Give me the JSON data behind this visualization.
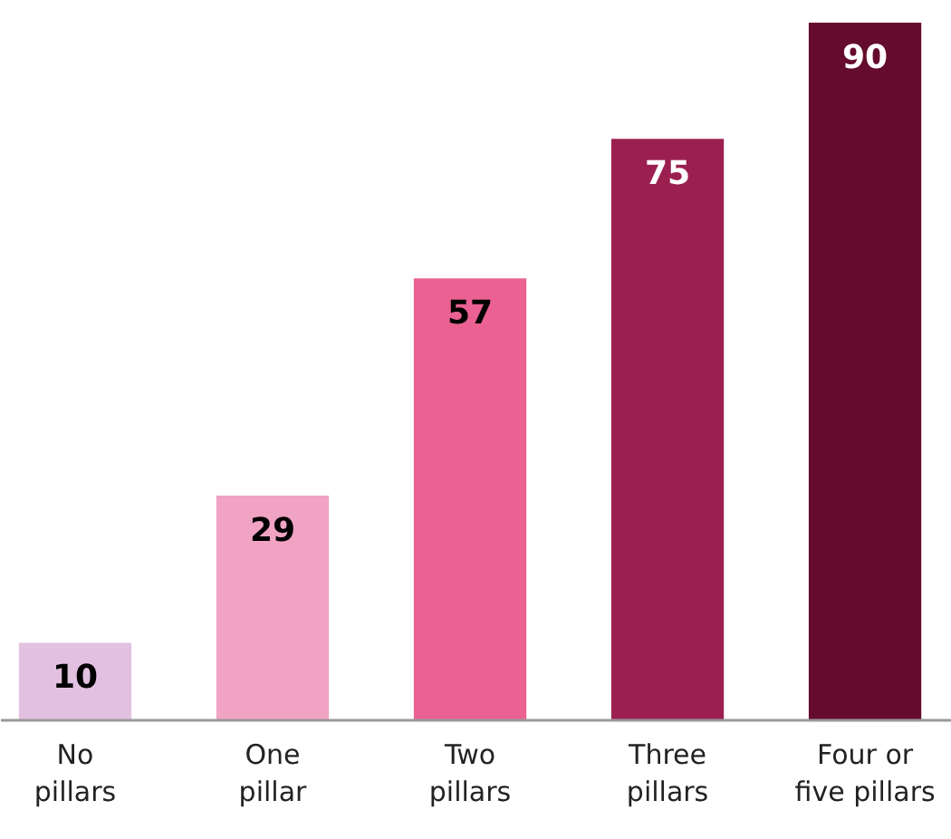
{
  "chart_data": {
    "type": "bar",
    "categories": [
      "No\npillars",
      "One\npillar",
      "Two\npillars",
      "Three\npillars",
      "Four or\nfive pillars"
    ],
    "values": [
      10,
      29,
      57,
      75,
      90
    ],
    "colors": [
      "#e2c0e0",
      "#f0a3c3",
      "#ea6192",
      "#9b2050",
      "#650b2e"
    ],
    "data_labels": true,
    "tick_labels": false
  }
}
